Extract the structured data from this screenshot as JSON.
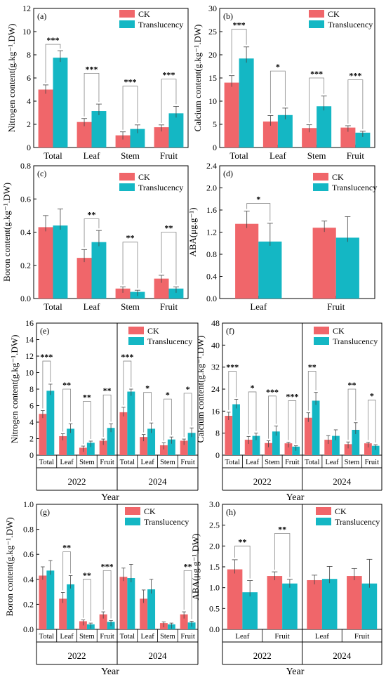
{
  "figure": {
    "legend": [
      "CK",
      "Translucency"
    ],
    "colors": {
      "ck": "#f0666a",
      "tr": "#14b7c4",
      "axis": "#000000",
      "bracket": "#888888"
    }
  },
  "chart_data": [
    {
      "type": "bar",
      "panel": "(a)",
      "ylabel": "Nitrogen content(g.kg⁻¹.DW)",
      "ylim": [
        0,
        12
      ],
      "yticks": [
        "0",
        "2",
        "4",
        "6",
        "8",
        "10",
        "12"
      ],
      "categories": [
        "Total",
        "Leaf",
        "Stem",
        "Fruit"
      ],
      "series": [
        {
          "name": "CK",
          "values": [
            5.0,
            2.2,
            1.05,
            1.75
          ],
          "err": [
            0.4,
            0.3,
            0.3,
            0.2
          ]
        },
        {
          "name": "Translucency",
          "values": [
            7.75,
            3.15,
            1.6,
            2.95
          ],
          "err": [
            0.6,
            0.6,
            0.35,
            0.6
          ]
        }
      ],
      "significance": [
        {
          "label": "***",
          "h": 8.9
        },
        {
          "label": "***",
          "h": 6.4
        },
        {
          "label": "***",
          "h": 5.3
        },
        {
          "label": "***",
          "h": 5.9
        }
      ]
    },
    {
      "type": "bar",
      "panel": "(b)",
      "ylabel": "Calcium content(g.kg⁻¹.DW)",
      "ylim": [
        0,
        30
      ],
      "yticks": [
        "0",
        "5",
        "10",
        "15",
        "20",
        "25",
        "30"
      ],
      "categories": [
        "Total",
        "Leaf",
        "Stem",
        "Fruit"
      ],
      "series": [
        {
          "name": "CK",
          "values": [
            14.0,
            5.6,
            4.2,
            4.3
          ],
          "err": [
            1.5,
            1.3,
            0.7,
            0.4
          ]
        },
        {
          "name": "Translucency",
          "values": [
            19.2,
            7.0,
            8.9,
            3.2
          ],
          "err": [
            2.5,
            1.5,
            2.2,
            0.3
          ]
        }
      ],
      "significance": [
        {
          "label": "***",
          "h": 25.5
        },
        {
          "label": "*",
          "h": 16.5
        },
        {
          "label": "***",
          "h": 15.0
        },
        {
          "label": "***",
          "h": 14.6
        }
      ]
    },
    {
      "type": "bar",
      "panel": "(c)",
      "ylabel": "Boron content(g.kg⁻¹.DW)",
      "ylim": [
        0,
        0.8
      ],
      "yticks": [
        "0.0",
        "0.2",
        "0.4",
        "0.6",
        "0.8"
      ],
      "categories": [
        "Total",
        "Leaf",
        "Stem",
        "Fruit"
      ],
      "series": [
        {
          "name": "CK",
          "values": [
            0.43,
            0.245,
            0.06,
            0.12
          ],
          "err": [
            0.07,
            0.05,
            0.01,
            0.02
          ]
        },
        {
          "name": "Translucency",
          "values": [
            0.44,
            0.34,
            0.04,
            0.06
          ],
          "err": [
            0.1,
            0.07,
            0.01,
            0.01
          ]
        }
      ],
      "significance": [
        null,
        {
          "label": "**",
          "h": 0.48
        },
        {
          "label": "**",
          "h": 0.34
        },
        {
          "label": "**",
          "h": 0.4
        }
      ]
    },
    {
      "type": "bar",
      "panel": "(d)",
      "ylabel": "ABA(μg.g⁻¹)",
      "ylim": [
        0,
        2.4
      ],
      "yticks": [
        "0.0",
        "0.4",
        "0.8",
        "1.2",
        "1.6",
        "2.0",
        "2.4"
      ],
      "categories": [
        "Leaf",
        "Fruit"
      ],
      "series": [
        {
          "name": "CK",
          "values": [
            1.35,
            1.28
          ],
          "err": [
            0.23,
            0.12
          ]
        },
        {
          "name": "Translucency",
          "values": [
            1.03,
            1.1
          ],
          "err": [
            0.33,
            0.38
          ]
        }
      ],
      "significance": [
        {
          "label": "*",
          "h": 1.72
        },
        null
      ]
    },
    {
      "type": "bar",
      "panel": "(e)",
      "grouped_by_year": true,
      "ylabel": "Nitrogen content(g.kg⁻¹.DW)",
      "xlabel": "Year",
      "ylim": [
        0,
        16
      ],
      "yticks": [
        "0",
        "2",
        "4",
        "6",
        "8",
        "10",
        "12",
        "14",
        "16"
      ],
      "categories": [
        "Total",
        "Leaf",
        "Stem",
        "Fruit"
      ],
      "years": [
        "2022",
        "2024"
      ],
      "series": [
        {
          "name": "CK",
          "values": [
            [
              5.0,
              2.3,
              0.9,
              1.75
            ],
            [
              5.2,
              2.2,
              1.2,
              1.75
            ]
          ],
          "err": [
            [
              0.4,
              0.3,
              0.2,
              0.2
            ],
            [
              0.6,
              0.3,
              0.3,
              0.2
            ]
          ]
        },
        {
          "name": "Translucency",
          "values": [
            [
              7.8,
              3.2,
              1.5,
              3.3
            ],
            [
              7.7,
              3.2,
              1.9,
              2.7
            ]
          ],
          "err": [
            [
              0.8,
              0.6,
              0.2,
              0.5
            ],
            [
              0.3,
              0.7,
              0.3,
              0.6
            ]
          ]
        }
      ],
      "significance": [
        [
          {
            "label": "***",
            "h": 11.4
          },
          {
            "label": "**",
            "h": 8.0
          },
          {
            "label": "**",
            "h": 6.5
          },
          {
            "label": "**",
            "h": 7.3
          }
        ],
        [
          {
            "label": "***",
            "h": 11.4
          },
          {
            "label": "*",
            "h": 7.6
          },
          {
            "label": "*",
            "h": 6.8
          },
          {
            "label": "*",
            "h": 7.5
          }
        ]
      ]
    },
    {
      "type": "bar",
      "panel": "(f)",
      "grouped_by_year": true,
      "ylabel": "Calcium content(g.kg⁻¹.DW)",
      "xlabel": "Year",
      "ylim": [
        0,
        48
      ],
      "yticks": [
        "0",
        "8",
        "16",
        "24",
        "32",
        "40",
        "48"
      ],
      "categories": [
        "Total",
        "Leaf",
        "Stem",
        "Fruit"
      ],
      "years": [
        "2022",
        "2024"
      ],
      "series": [
        {
          "name": "CK",
          "values": [
            [
              14.3,
              5.6,
              4.4,
              4.3
            ],
            [
              13.6,
              5.6,
              4.0,
              4.3
            ]
          ],
          "err": [
            [
              1.3,
              1.2,
              0.8,
              0.4
            ],
            [
              1.8,
              1.5,
              0.8,
              0.4
            ]
          ]
        },
        {
          "name": "Translucency",
          "values": [
            [
              18.5,
              7.0,
              8.6,
              3.1
            ],
            [
              19.8,
              7.0,
              9.2,
              3.4
            ]
          ],
          "err": [
            [
              1.8,
              1.0,
              2.0,
              0.3
            ],
            [
              3.0,
              2.2,
              2.6,
              0.4
            ]
          ]
        }
      ],
      "significance": [
        [
          {
            "label": "***",
            "h": 30.5
          },
          {
            "label": "*",
            "h": 23.0
          },
          {
            "label": "***",
            "h": 21.5
          },
          {
            "label": "***",
            "h": 19.8
          }
        ],
        [
          {
            "label": "**",
            "h": 30.5
          },
          null,
          {
            "label": "**",
            "h": 24.0
          },
          {
            "label": "*",
            "h": 20.0
          }
        ]
      ]
    },
    {
      "type": "bar",
      "panel": "(g)",
      "grouped_by_year": true,
      "ylabel": "Boron content(g.kg⁻¹.DW)",
      "xlabel": "Year",
      "ylim": [
        0,
        1.0
      ],
      "yticks": [
        "0.0",
        "0.2",
        "0.4",
        "0.6",
        "0.8",
        "1.0"
      ],
      "categories": [
        "Total",
        "Leaf",
        "Stem",
        "Fruit"
      ],
      "years": [
        "2022",
        "2024"
      ],
      "series": [
        {
          "name": "CK",
          "values": [
            [
              0.43,
              0.245,
              0.065,
              0.12
            ],
            [
              0.42,
              0.245,
              0.05,
              0.12
            ]
          ],
          "err": [
            [
              0.07,
              0.05,
              0.01,
              0.02
            ],
            [
              0.07,
              0.07,
              0.01,
              0.02
            ]
          ]
        },
        {
          "name": "Translucency",
          "values": [
            [
              0.47,
              0.36,
              0.04,
              0.06
            ],
            [
              0.41,
              0.32,
              0.04,
              0.055
            ]
          ],
          "err": [
            [
              0.08,
              0.07,
              0.01,
              0.01
            ],
            [
              0.11,
              0.08,
              0.01,
              0.01
            ]
          ]
        }
      ],
      "significance": [
        [
          null,
          {
            "label": "**",
            "h": 0.62
          },
          {
            "label": "**",
            "h": 0.4
          },
          {
            "label": "***",
            "h": 0.47
          }
        ],
        [
          null,
          null,
          null,
          {
            "label": "**",
            "h": 0.47
          }
        ]
      ]
    },
    {
      "type": "bar",
      "panel": "(h)",
      "grouped_by_year": true,
      "ylabel": "ABA(μg.g⁻¹.DW)",
      "xlabel": "Year",
      "ylim": [
        0,
        3.0
      ],
      "yticks": [
        "0.0",
        "0.5",
        "1.0",
        "1.5",
        "2.0",
        "2.5",
        "3.0"
      ],
      "categories": [
        "Leaf",
        "Fruit"
      ],
      "years": [
        "2022",
        "2024"
      ],
      "series": [
        {
          "name": "CK",
          "values": [
            [
              1.44,
              1.28
            ],
            [
              1.18,
              1.28
            ]
          ],
          "err": [
            [
              0.23,
              0.1
            ],
            [
              0.12,
              0.18
            ]
          ]
        },
        {
          "name": "Translucency",
          "values": [
            [
              0.89,
              1.1
            ],
            [
              1.21,
              1.1
            ]
          ],
          "err": [
            [
              0.28,
              0.1
            ],
            [
              0.3,
              0.58
            ]
          ]
        }
      ],
      "significance": [
        [
          {
            "label": "**",
            "h": 2.0
          },
          {
            "label": "**",
            "h": 2.3
          }
        ],
        [
          null,
          null
        ]
      ]
    }
  ]
}
